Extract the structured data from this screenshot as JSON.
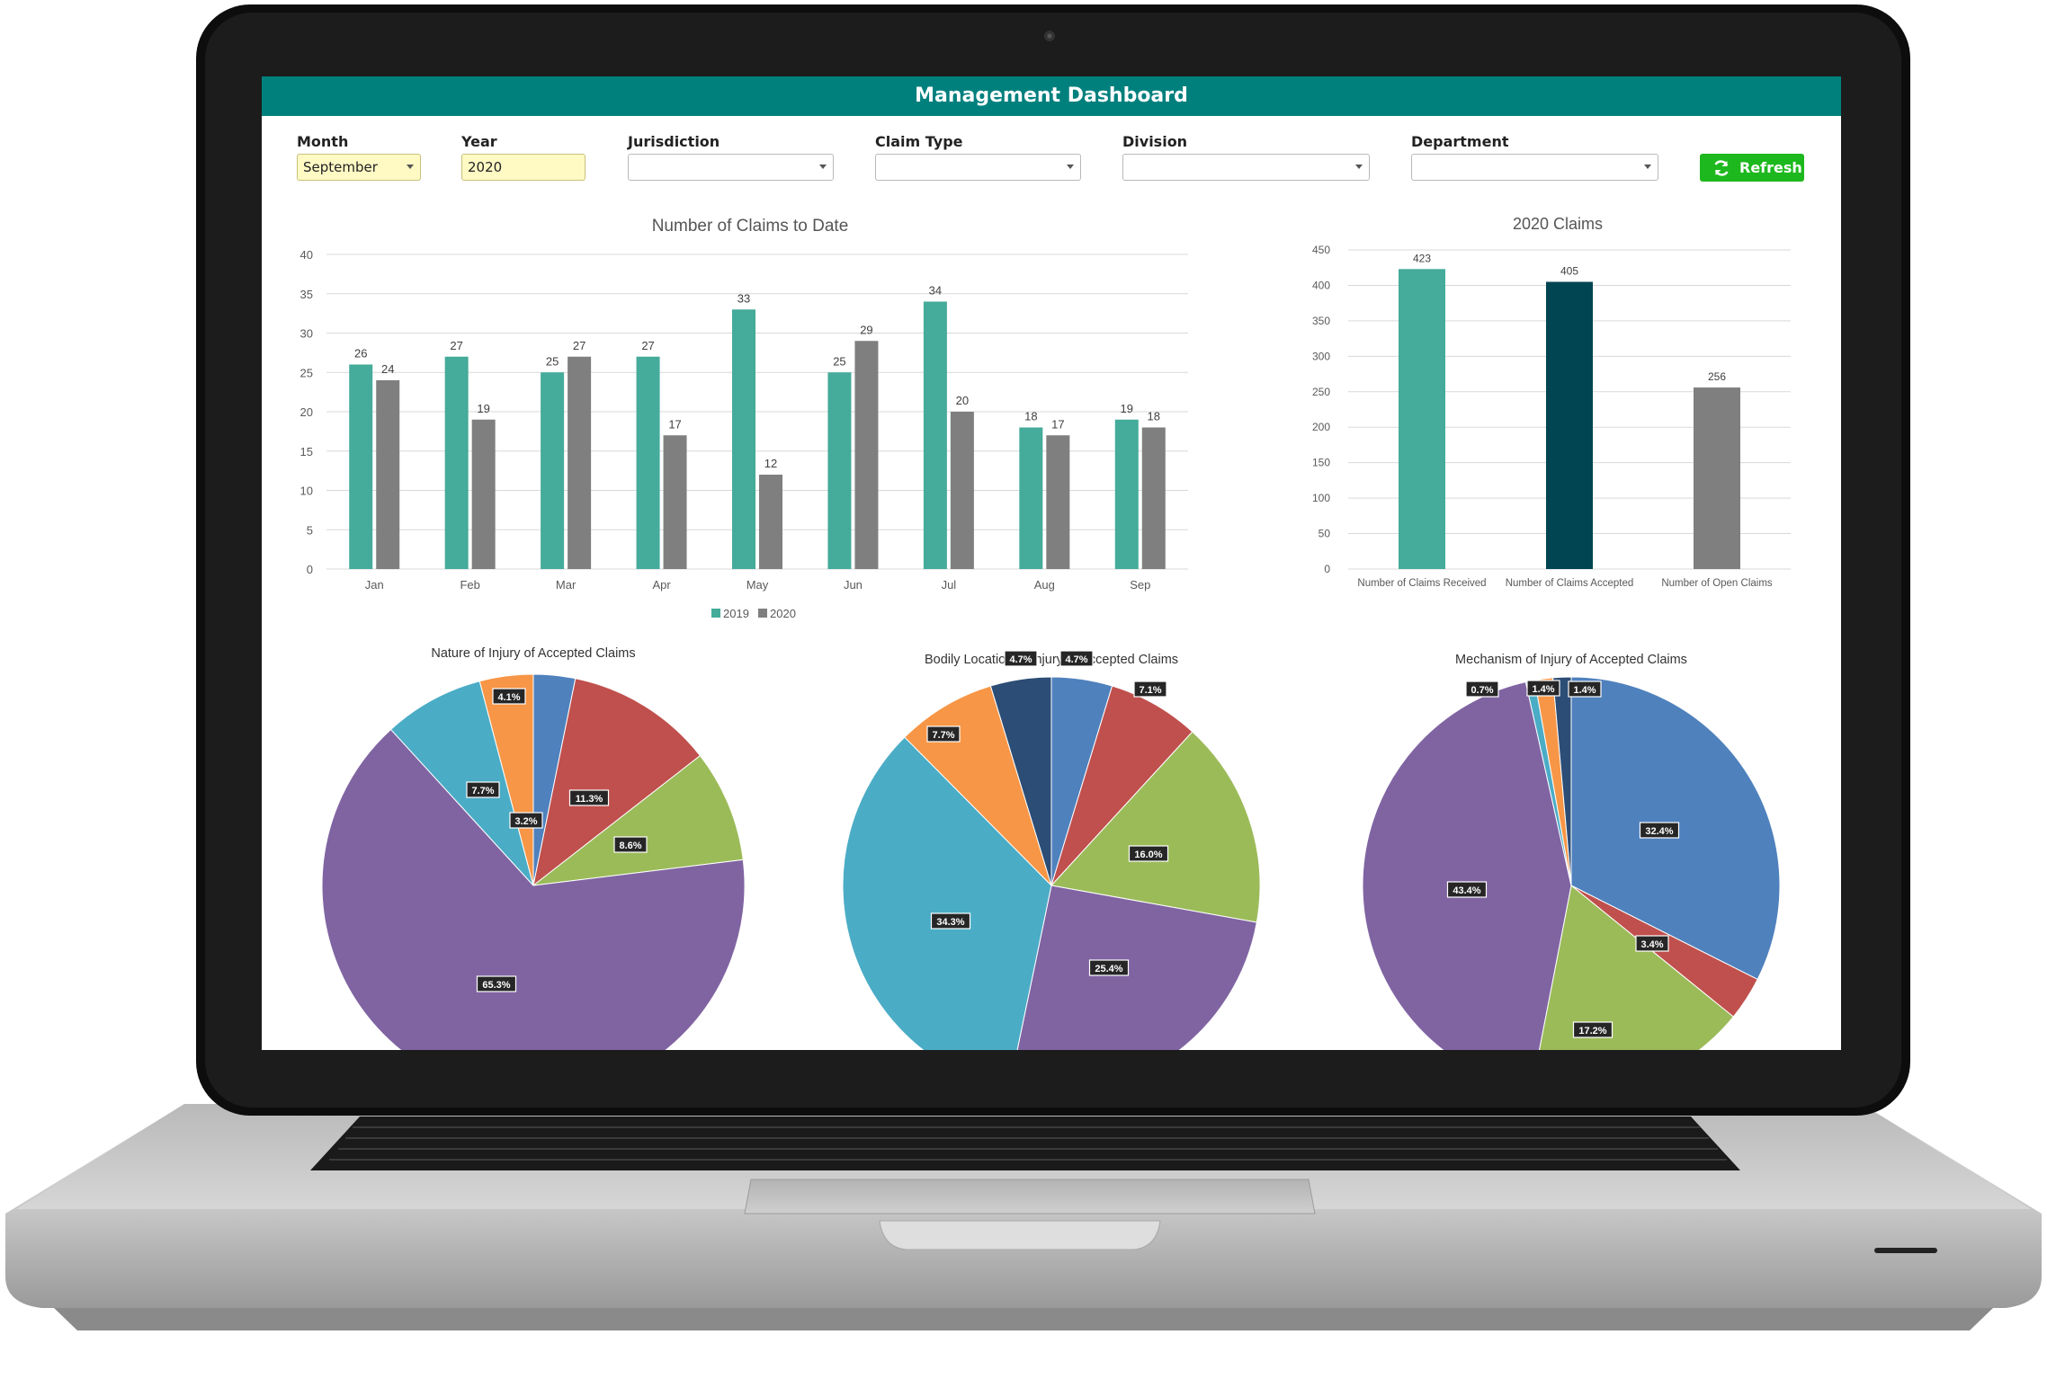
{
  "dashboard": {
    "title": "Management Dashboard",
    "filters": {
      "month": {
        "label": "Month",
        "value": "September"
      },
      "year": {
        "label": "Year",
        "value": "2020"
      },
      "jurisdiction": {
        "label": "Jurisdiction",
        "value": ""
      },
      "claim_type": {
        "label": "Claim Type",
        "value": ""
      },
      "division": {
        "label": "Division",
        "value": ""
      },
      "department": {
        "label": "Department",
        "value": ""
      }
    },
    "refresh_label": "Refresh",
    "refresh_icon": "refresh-icon",
    "colors": {
      "header": "#00807d",
      "refresh": "#1db81d",
      "teal": "#45ab9a",
      "gray": "#7f7f7f",
      "dark_teal": "#014552",
      "pie_blue": "#4f81bd",
      "pie_red": "#c0504d",
      "pie_green": "#9bbb59",
      "pie_purple": "#8064a2",
      "pie_cyan": "#4bacc6",
      "pie_orange": "#f79646",
      "pie_navy": "#2c4d75"
    }
  },
  "chart_data": [
    {
      "type": "bar",
      "title": "Number of Claims to Date",
      "categories": [
        "Jan",
        "Feb",
        "Mar",
        "Apr",
        "May",
        "Jun",
        "Jul",
        "Aug",
        "Sep"
      ],
      "series": [
        {
          "name": "2019",
          "color": "#45ab9a",
          "values": [
            26,
            27,
            25,
            27,
            33,
            25,
            34,
            18,
            19
          ]
        },
        {
          "name": "2020",
          "color": "#7f7f7f",
          "values": [
            24,
            19,
            27,
            17,
            12,
            29,
            20,
            17,
            18
          ]
        }
      ],
      "ylim": [
        0,
        40
      ],
      "yticks": [
        0,
        5,
        10,
        15,
        20,
        25,
        30,
        35,
        40
      ],
      "grid": true,
      "legend": "bottom"
    },
    {
      "type": "bar",
      "title": "2020 Claims",
      "categories": [
        "Number of Claims Received",
        "Number of Claims Accepted",
        "Number of Open Claims"
      ],
      "values": [
        423,
        405,
        256
      ],
      "colors": [
        "#45ab9a",
        "#014552",
        "#7f7f7f"
      ],
      "ylim": [
        0,
        450
      ],
      "yticks": [
        0,
        50,
        100,
        150,
        200,
        250,
        300,
        350,
        400,
        450
      ],
      "grid": true
    },
    {
      "type": "pie",
      "title": "Nature of Injury of Accepted Claims",
      "slices": [
        {
          "value": 3.2,
          "label": "3.2%",
          "color": "#4f81bd"
        },
        {
          "value": 11.3,
          "label": "11.3%",
          "color": "#c0504d"
        },
        {
          "value": 8.6,
          "label": "8.6%",
          "color": "#9bbb59"
        },
        {
          "value": 65.3,
          "label": "65.3%",
          "color": "#8064a2"
        },
        {
          "value": 7.7,
          "label": "7.7%",
          "color": "#4bacc6"
        },
        {
          "value": 4.1,
          "label": "4.1%",
          "color": "#f79646"
        }
      ]
    },
    {
      "type": "pie",
      "title": "Bodily Location of Injury of Accepted Claims",
      "slices": [
        {
          "value": 4.7,
          "label": "4.7%",
          "color": "#4f81bd"
        },
        {
          "value": 7.1,
          "label": "7.1%",
          "color": "#c0504d"
        },
        {
          "value": 16.0,
          "label": "16.0%",
          "color": "#9bbb59"
        },
        {
          "value": 25.4,
          "label": "25.4%",
          "color": "#8064a2"
        },
        {
          "value": 34.3,
          "label": "34.3%",
          "color": "#4bacc6"
        },
        {
          "value": 7.7,
          "label": "7.7%",
          "color": "#f79646"
        },
        {
          "value": 4.7,
          "label": "4.7%",
          "color": "#2c4d75"
        }
      ]
    },
    {
      "type": "pie",
      "title": "Mechanism of Injury of Accepted Claims",
      "slices": [
        {
          "value": 32.4,
          "label": "32.4%",
          "color": "#4f81bd"
        },
        {
          "value": 3.4,
          "label": "3.4%",
          "color": "#c0504d"
        },
        {
          "value": 17.2,
          "label": "17.2%",
          "color": "#9bbb59"
        },
        {
          "value": 43.4,
          "label": "43.4%",
          "color": "#8064a2"
        },
        {
          "value": 0.7,
          "label": "0.7%",
          "color": "#4bacc6"
        },
        {
          "value": 1.4,
          "label": "1.4%",
          "color": "#f79646"
        },
        {
          "value": 1.4,
          "label": "1.4%",
          "color": "#2c4d75"
        }
      ]
    }
  ]
}
